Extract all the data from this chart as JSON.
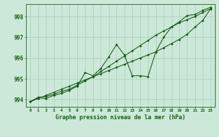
{
  "xlabel": "Graphe pression niveau de la mer (hPa)",
  "background_color": "#cce8d8",
  "grid_color": "#a8ccb8",
  "line_color": "#1a5c1a",
  "xlim": [
    -0.5,
    23.5
  ],
  "ylim": [
    993.65,
    998.6
  ],
  "yticks": [
    994,
    995,
    996,
    997,
    998
  ],
  "xticks": [
    0,
    1,
    2,
    3,
    4,
    5,
    6,
    7,
    8,
    9,
    10,
    11,
    12,
    13,
    14,
    15,
    16,
    17,
    18,
    19,
    20,
    21,
    22,
    23
  ],
  "series1": [
    993.9,
    994.1,
    994.05,
    994.2,
    994.3,
    994.45,
    994.65,
    995.3,
    995.15,
    995.5,
    996.05,
    996.65,
    996.15,
    995.15,
    995.15,
    995.1,
    996.3,
    997.0,
    997.5,
    997.75,
    998.05,
    998.1,
    998.3,
    998.45
  ],
  "series2": [
    993.9,
    994.1,
    994.15,
    994.25,
    994.4,
    994.5,
    994.7,
    994.9,
    995.1,
    995.35,
    995.6,
    995.85,
    996.1,
    996.35,
    996.6,
    996.85,
    997.1,
    997.3,
    997.5,
    997.7,
    997.85,
    998.0,
    998.2,
    998.38
  ],
  "series3": [
    993.9,
    994.05,
    994.2,
    994.35,
    994.5,
    994.65,
    994.8,
    994.95,
    995.1,
    995.25,
    995.4,
    995.55,
    995.7,
    995.85,
    996.0,
    996.15,
    996.3,
    996.5,
    996.7,
    996.9,
    997.15,
    997.5,
    997.82,
    998.38
  ]
}
